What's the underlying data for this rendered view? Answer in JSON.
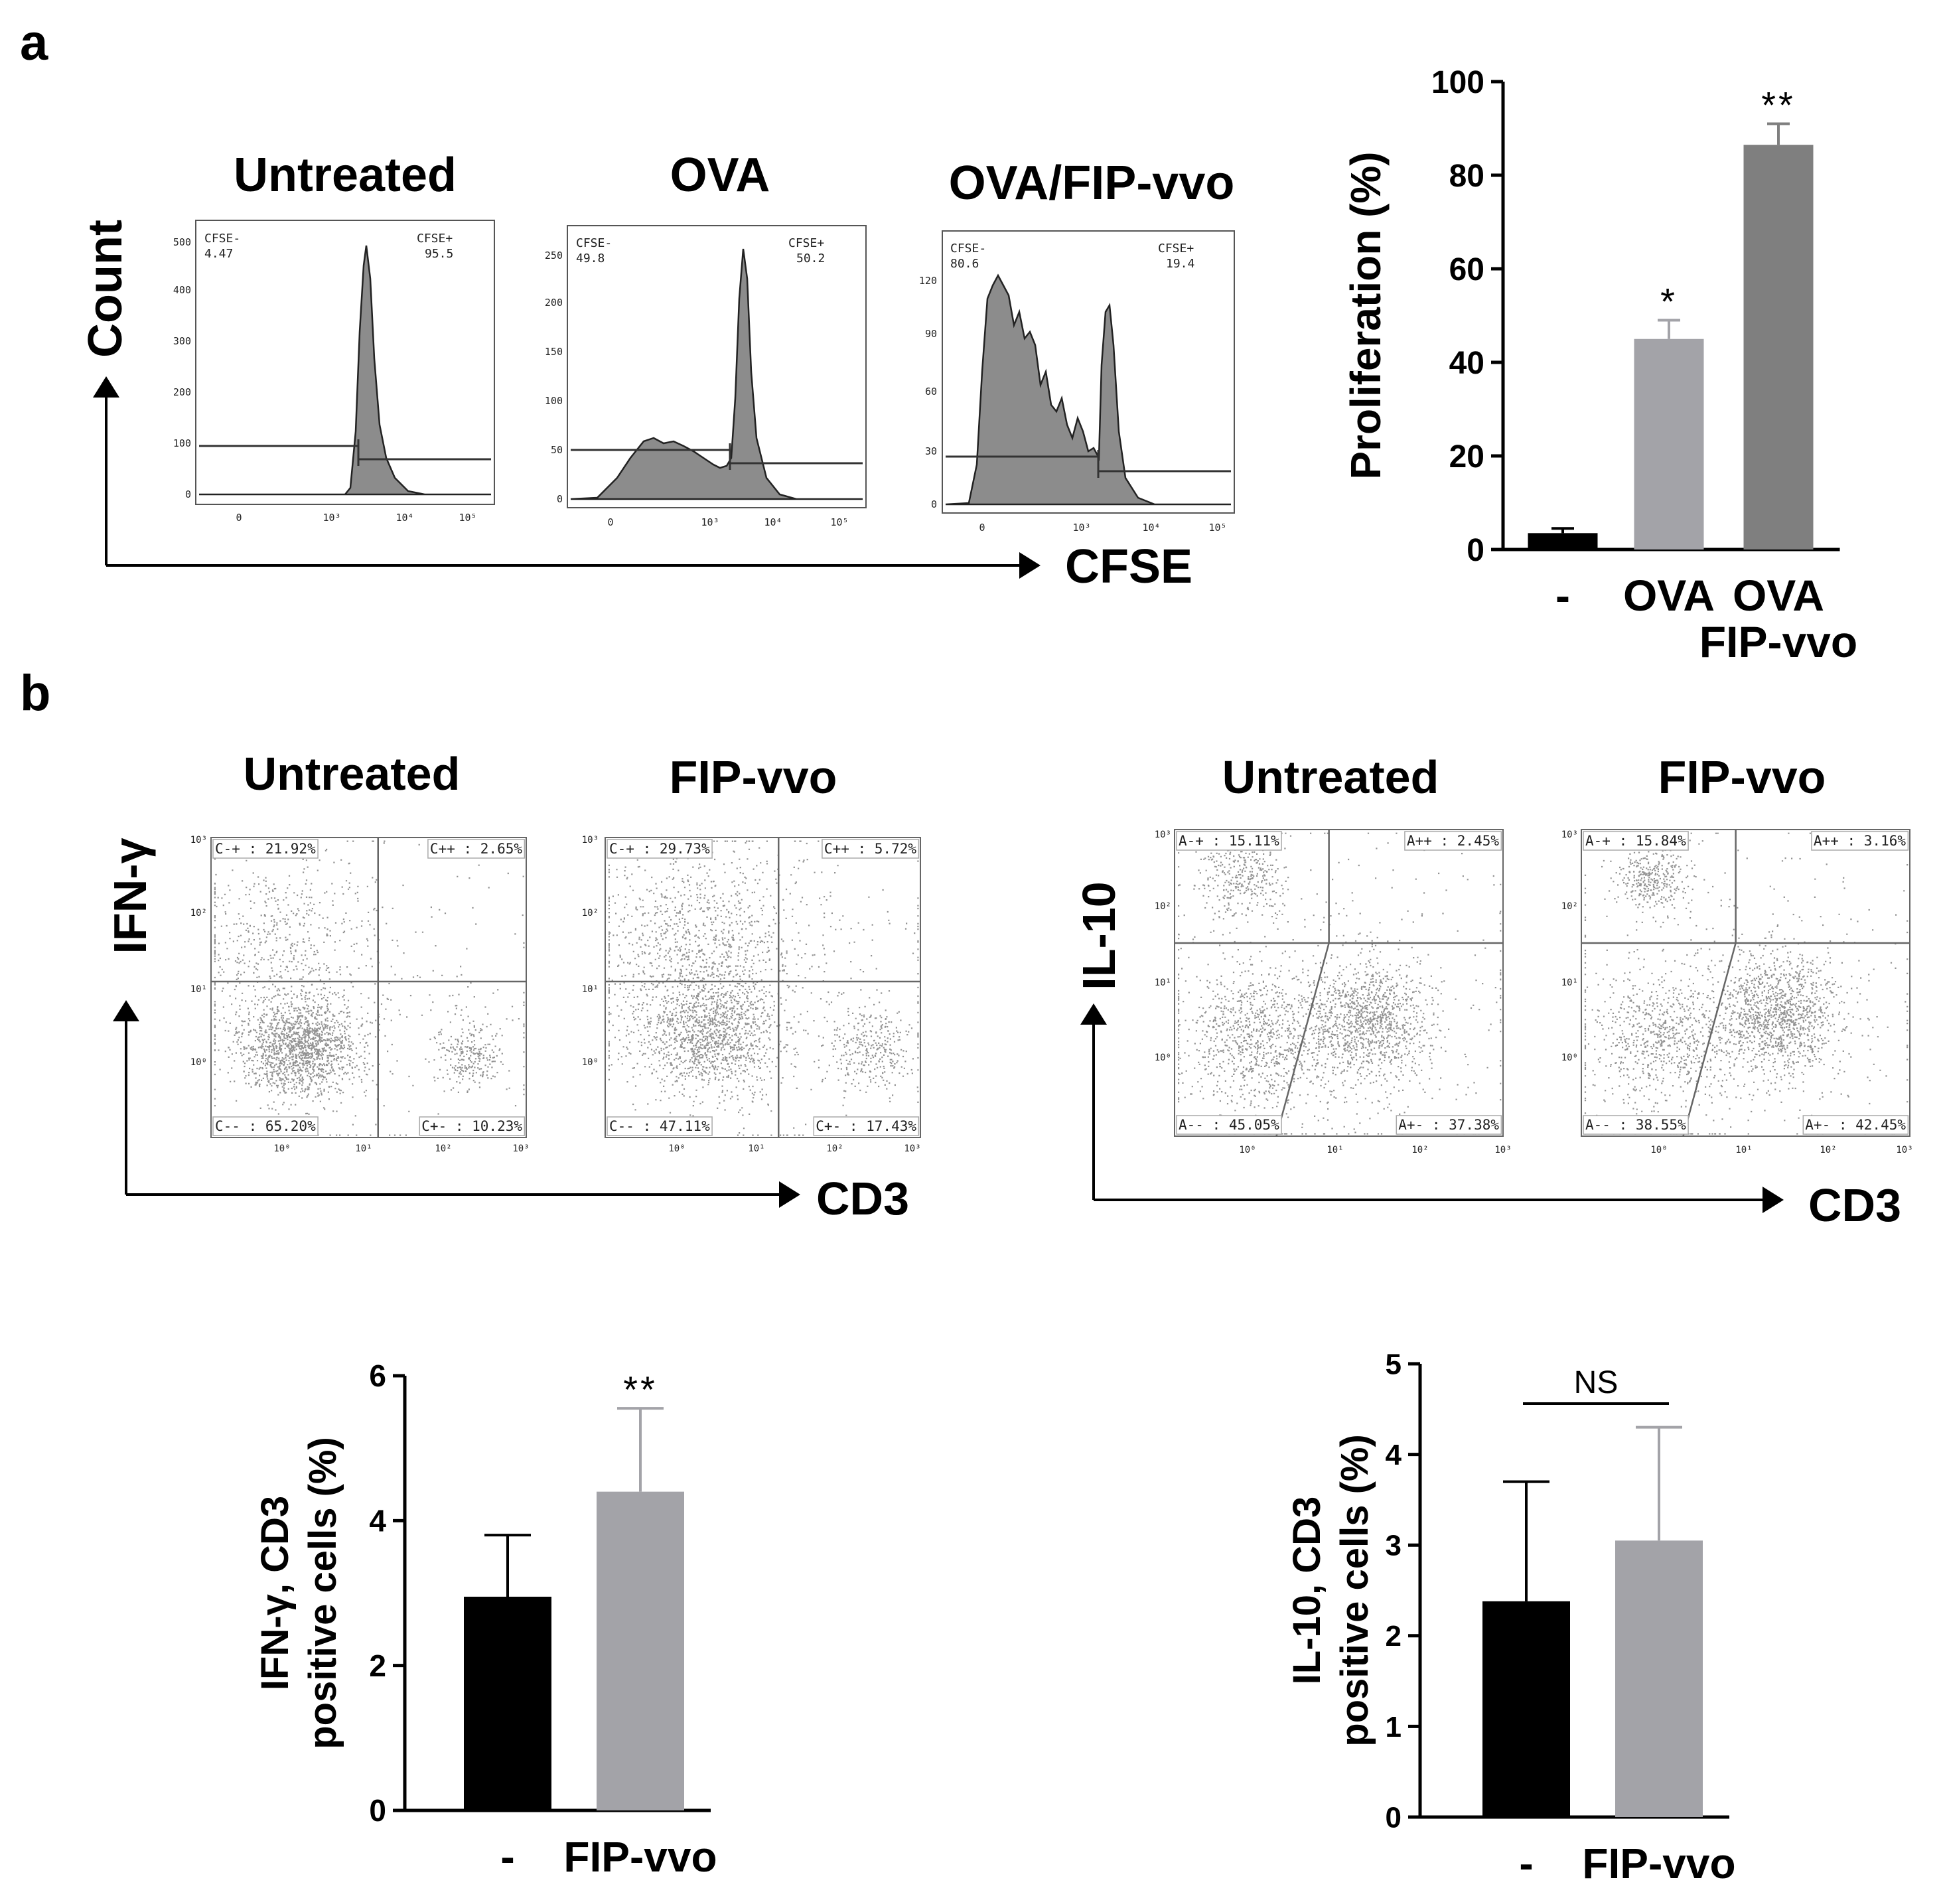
{
  "colors": {
    "black_bar": "#000000",
    "light_gray_bar": "#a3a3a8",
    "mid_gray_bar": "#7f7f7f",
    "histogram_fill": "#8c8c8c",
    "dot": "#6e6e6e"
  },
  "panel_a": {
    "label": "a",
    "y_axis_label": "Count",
    "x_axis_label": "CFSE",
    "histograms": [
      {
        "title": "Untreated",
        "left_gate_label": "CFSE-",
        "left_gate_value": "4.47",
        "right_gate_label": "CFSE+",
        "right_gate_value": "95.5",
        "yticks": [
          "0",
          "100",
          "200",
          "300",
          "400",
          "500"
        ],
        "xticks": [
          "0",
          "10³",
          "10⁴",
          "10⁵"
        ]
      },
      {
        "title": "OVA",
        "left_gate_label": "CFSE-",
        "left_gate_value": "49.8",
        "right_gate_label": "CFSE+",
        "right_gate_value": "50.2",
        "yticks": [
          "0",
          "50",
          "100",
          "150",
          "200",
          "250"
        ],
        "xticks": [
          "0",
          "10³",
          "10⁴",
          "10⁵"
        ]
      },
      {
        "title": "OVA/FIP-vvo",
        "left_gate_label": "CFSE-",
        "left_gate_value": "80.6",
        "right_gate_label": "CFSE+",
        "right_gate_value": "19.4",
        "yticks": [
          "0",
          "30",
          "60",
          "90",
          "120"
        ],
        "xticks": [
          "0",
          "10³",
          "10⁴",
          "10⁵"
        ]
      }
    ]
  },
  "panel_b": {
    "label": "b",
    "left_group": {
      "y_axis_label": "IFN-γ",
      "x_axis_label": "CD3",
      "plots": [
        {
          "title": "Untreated",
          "ul": "C-+ : 21.92%",
          "ur": "C++ : 2.65%",
          "ll": "C-- : 65.20%",
          "lr": "C+- : 10.23%"
        },
        {
          "title": "FIP-vvo",
          "ul": "C-+ : 29.73%",
          "ur": "C++ : 5.72%",
          "ll": "C-- : 47.11%",
          "lr": "C+- : 17.43%"
        }
      ],
      "yticks": [
        "10³",
        "10²",
        "10¹",
        "10⁰"
      ],
      "xticks": [
        "10⁰",
        "10¹",
        "10²",
        "10³"
      ]
    },
    "right_group": {
      "y_axis_label": "IL-10",
      "x_axis_label": "CD3",
      "plots": [
        {
          "title": "Untreated",
          "ul": "A-+ : 15.11%",
          "ur": "A++ : 2.45%",
          "ll": "A-- : 45.05%",
          "lr": "A+- : 37.38%"
        },
        {
          "title": "FIP-vvo",
          "ul": "A-+ : 15.84%",
          "ur": "A++ : 3.16%",
          "ll": "A-- : 38.55%",
          "lr": "A+- : 42.45%"
        }
      ],
      "yticks": [
        "10³",
        "10²",
        "10¹",
        "10⁰"
      ],
      "xticks": [
        "10⁰",
        "10¹",
        "10²",
        "10³"
      ]
    }
  },
  "chart_data": [
    {
      "type": "bar",
      "title": "",
      "categories": [
        "-",
        "OVA",
        "OVA\nFIP-vvo"
      ],
      "category_lines": [
        [
          "-"
        ],
        [
          "OVA"
        ],
        [
          "OVA",
          "FIP-vvo"
        ]
      ],
      "values": [
        3.5,
        45,
        86.5
      ],
      "errors": [
        1,
        4,
        4.5
      ],
      "significance": [
        "",
        "*",
        "**"
      ],
      "xlabel": "",
      "ylabel": "Proliferation (%)",
      "ylabel_lines": [
        "Proliferation (%)"
      ],
      "ylim": [
        0,
        100
      ],
      "yticks": [
        0,
        20,
        40,
        60,
        80,
        100
      ],
      "colors": [
        "#000000",
        "#a3a3a8",
        "#7f7f7f"
      ]
    },
    {
      "type": "bar",
      "title": "",
      "categories": [
        "-",
        "FIP-vvo"
      ],
      "category_lines": [
        [
          "-"
        ],
        [
          "FIP-vvo"
        ]
      ],
      "values": [
        2.95,
        4.4
      ],
      "errors": [
        0.85,
        1.15
      ],
      "significance": [
        "",
        "**"
      ],
      "xlabel": "",
      "ylabel": "IFN-γ, CD3 positive cells (%)",
      "ylabel_lines": [
        "IFN-γ, CD3",
        "positive cells (%)"
      ],
      "ylim": [
        0,
        6
      ],
      "yticks": [
        0,
        2,
        4,
        6
      ],
      "colors": [
        "#000000",
        "#a3a3a8"
      ]
    },
    {
      "type": "bar",
      "title": "",
      "categories": [
        "-",
        "FIP-vvo"
      ],
      "category_lines": [
        [
          "-"
        ],
        [
          "FIP-vvo"
        ]
      ],
      "values": [
        2.38,
        3.05
      ],
      "errors": [
        1.32,
        1.25
      ],
      "significance": [],
      "comparison_label": "NS",
      "xlabel": "",
      "ylabel": "IL-10, CD3 positive cells (%)",
      "ylabel_lines": [
        "IL-10, CD3",
        "positive cells (%)"
      ],
      "ylim": [
        0,
        5
      ],
      "yticks": [
        0,
        1,
        2,
        3,
        4,
        5
      ],
      "colors": [
        "#000000",
        "#a3a3a8"
      ]
    }
  ]
}
